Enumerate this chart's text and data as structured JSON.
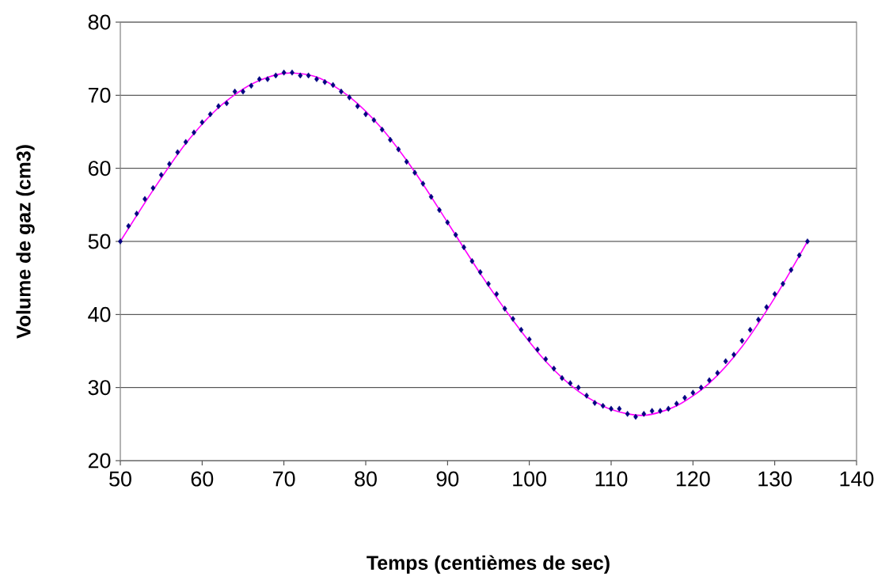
{
  "chart_data": {
    "type": "scatter",
    "xlabel": "Temps (centièmes de sec)",
    "ylabel": "Volume de gaz (cm3)",
    "xlim": [
      50,
      140
    ],
    "xticks": [
      50,
      60,
      70,
      80,
      90,
      100,
      110,
      120,
      130,
      140
    ],
    "ylim": [
      20,
      80
    ],
    "yticks": [
      20,
      30,
      40,
      50,
      60,
      70,
      80
    ],
    "grid": "y",
    "series": [
      {
        "marker": "diamond",
        "color": "#000080",
        "x": [
          50,
          51,
          52,
          53,
          54,
          55,
          56,
          57,
          58,
          59,
          60,
          61,
          62,
          63,
          64,
          65,
          66,
          67,
          68,
          69,
          70,
          71,
          72,
          73,
          74,
          75,
          76,
          77,
          78,
          79,
          80,
          81,
          82,
          83,
          84,
          85,
          86,
          87,
          88,
          89,
          90,
          91,
          92,
          93,
          94,
          95,
          96,
          97,
          98,
          99,
          100,
          101,
          102,
          103,
          104,
          105,
          106,
          107,
          108,
          109,
          110,
          111,
          112,
          113,
          114,
          115,
          116,
          117,
          118,
          119,
          120,
          121,
          122,
          123,
          124,
          125,
          126,
          127,
          128,
          129,
          130,
          131,
          132,
          133,
          134
        ],
        "values": [
          50,
          52.1,
          53.8,
          55.8,
          57.3,
          59.1,
          60.6,
          62.2,
          63.6,
          64.9,
          66.3,
          67.4,
          68.5,
          68.9,
          70.5,
          70.5,
          71.3,
          72.2,
          72.2,
          72.7,
          73.1,
          73.1,
          72.7,
          72.7,
          72.2,
          71.8,
          71.4,
          70.5,
          69.7,
          68.5,
          67.4,
          66.6,
          65.3,
          63.9,
          62.6,
          60.9,
          59.4,
          57.9,
          56.1,
          54.3,
          52.6,
          50.9,
          49.2,
          47.3,
          45.8,
          44.2,
          42.8,
          40.8,
          39.4,
          37.9,
          36.6,
          35.2,
          33.9,
          32.6,
          31.3,
          30.6,
          30.0,
          28.9,
          27.9,
          27.5,
          27.1,
          27.1,
          26.4,
          26.0,
          26.4,
          26.8,
          26.8,
          27.1,
          27.8,
          28.6,
          29.3,
          30.0,
          31.0,
          32.0,
          33.6,
          34.5,
          36.4,
          37.9,
          39.3,
          41.0,
          42.8,
          44.2,
          46.1,
          48.1,
          50
        ]
      },
      {
        "type": "line",
        "marker": "none",
        "line_style": "solid",
        "color": "#ff00ff",
        "x": [
          50,
          54,
          58,
          62,
          66,
          70,
          74,
          78,
          82,
          86,
          90,
          94,
          98,
          102,
          106,
          110,
          114,
          118,
          122,
          126,
          130,
          134
        ],
        "values": [
          50,
          57.0,
          63.4,
          68.3,
          71.5,
          73.0,
          72.5,
          69.8,
          65.4,
          59.5,
          52.6,
          45.6,
          39.2,
          33.6,
          29.5,
          27.0,
          26.2,
          27.5,
          30.6,
          35.6,
          42.3,
          50
        ]
      }
    ]
  }
}
